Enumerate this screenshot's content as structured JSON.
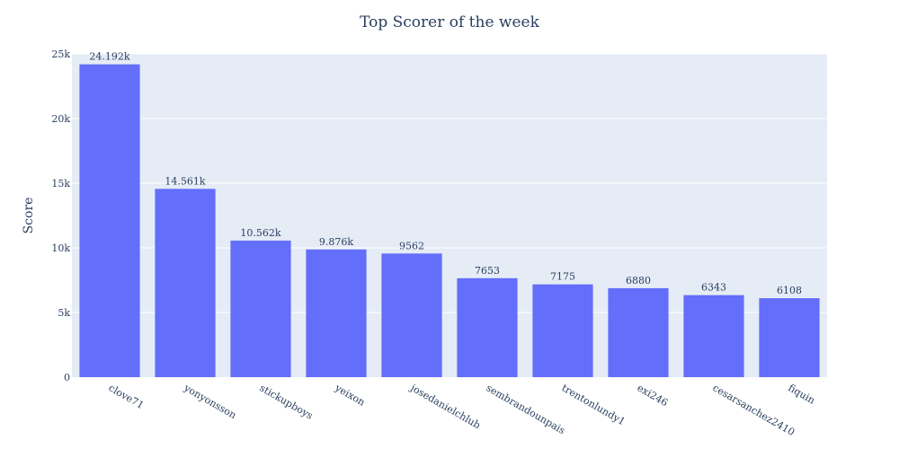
{
  "chart_data": {
    "type": "bar",
    "title": "Top Scorer of the week",
    "xlabel": "",
    "ylabel": "Score",
    "categories": [
      "clove71",
      "yonyonsson",
      "stickupboys",
      "yeixon",
      "josedanielchlub",
      "sembrandounpais",
      "trentonlundy1",
      "exi246",
      "cesarsanchez2410",
      "fiquin"
    ],
    "values": [
      24192,
      14561,
      10562,
      9876,
      9562,
      7653,
      7175,
      6880,
      6343,
      6108
    ],
    "data_labels": [
      "24.192k",
      "14.561k",
      "10.562k",
      "9.876k",
      "9562",
      "7653",
      "7175",
      "6880",
      "6343",
      "6108"
    ],
    "ylim": [
      0,
      25000
    ],
    "yticks": [
      0,
      5000,
      10000,
      15000,
      20000,
      25000
    ],
    "ytick_labels": [
      "0",
      "5k",
      "10k",
      "15k",
      "20k",
      "25k"
    ],
    "grid": true,
    "colors": {
      "bar": "#636efa",
      "plot_bg": "#e5ecf6",
      "grid": "#ffffff",
      "text": "#2a3f5f"
    }
  }
}
